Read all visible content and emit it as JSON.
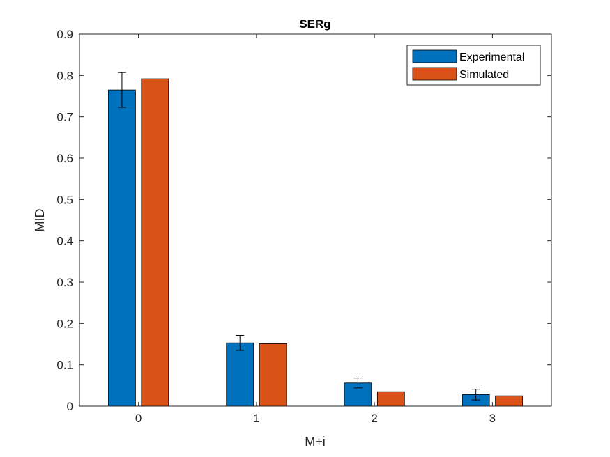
{
  "chart_data": {
    "type": "bar",
    "title": "SERg",
    "xlabel": "M+i",
    "ylabel": "MID",
    "categories": [
      "0",
      "1",
      "2",
      "3"
    ],
    "ylim": [
      0,
      0.9
    ],
    "yticks": [
      0,
      0.1,
      0.2,
      0.3,
      0.4,
      0.5,
      0.6,
      0.7,
      0.8,
      0.9
    ],
    "ytick_labels": [
      "0",
      "0.1",
      "0.2",
      "0.3",
      "0.4",
      "0.5",
      "0.6",
      "0.7",
      "0.8",
      "0.9"
    ],
    "grid": false,
    "legend": "top-right",
    "series": [
      {
        "name": "Experimental",
        "color": "#0072BD",
        "values": [
          0.765,
          0.153,
          0.056,
          0.028
        ],
        "errors": [
          0.042,
          0.018,
          0.012,
          0.013
        ]
      },
      {
        "name": "Simulated",
        "color": "#D95319",
        "values": [
          0.792,
          0.151,
          0.035,
          0.025
        ]
      }
    ]
  }
}
